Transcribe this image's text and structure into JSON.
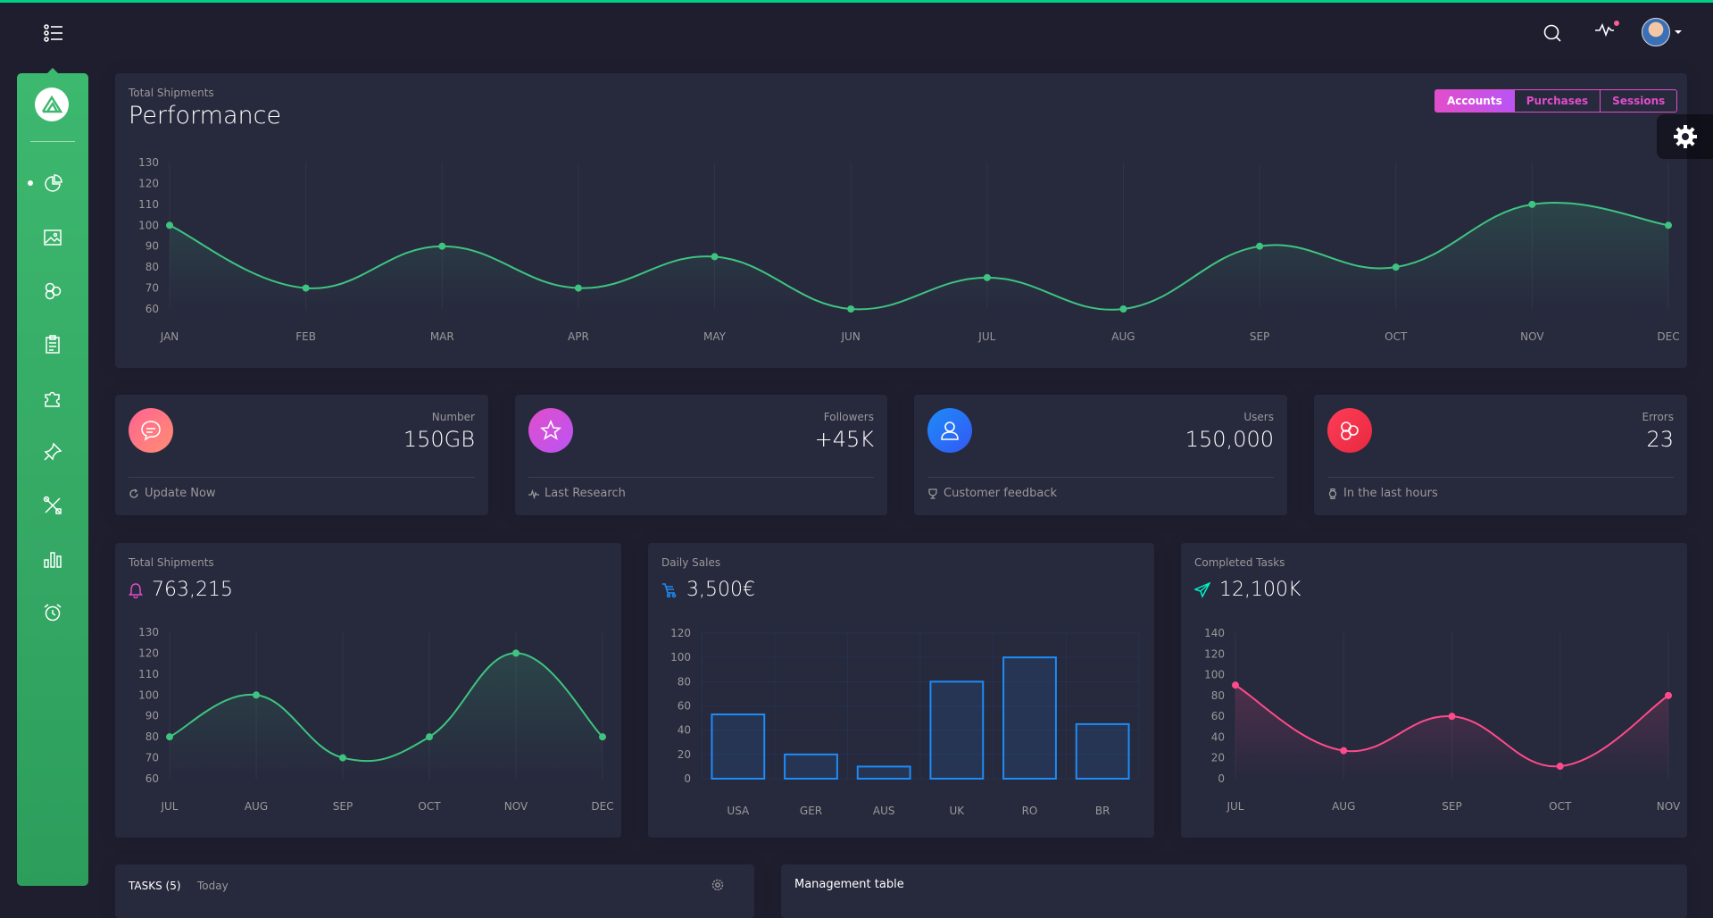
{
  "colors": {
    "background": "#1e1e2f",
    "card": "#27293d",
    "green": "#00d084",
    "line_green": "#3ec480",
    "accent_pink": "#e14eca",
    "blue": "#1d8cf8",
    "pink": "#ff4b8b",
    "muted": "#9a9a9a"
  },
  "navbar": {
    "menu_icon": "menu-list-icon",
    "search_icon": "search-icon",
    "activity_icon": "activity-icon",
    "avatar_icon": "avatar"
  },
  "sidebar": {
    "logo_icon": "logo-triangle-icon",
    "items": [
      {
        "icon": "pie-chart-icon",
        "active": true
      },
      {
        "icon": "image-icon",
        "active": false
      },
      {
        "icon": "atom-icon",
        "active": false
      },
      {
        "icon": "clipboard-icon",
        "active": false
      },
      {
        "icon": "puzzle-icon",
        "active": false
      },
      {
        "icon": "pin-icon",
        "active": false
      },
      {
        "icon": "tools-icon",
        "active": false
      },
      {
        "icon": "bar-chart-icon",
        "active": false
      },
      {
        "icon": "alarm-icon",
        "active": false
      }
    ]
  },
  "performance": {
    "category": "Total Shipments",
    "title": "Performance",
    "tabs": [
      "Accounts",
      "Purchases",
      "Sessions"
    ],
    "active_tab": 0
  },
  "stats": [
    {
      "category": "Number",
      "value": "150GB",
      "footer": "Update Now",
      "icon": "chat-icon",
      "footer_icon": "refresh-icon",
      "color": "#fd5d93"
    },
    {
      "category": "Followers",
      "value": "+45K",
      "footer": "Last Research",
      "icon": "star-icon",
      "footer_icon": "pulse-icon",
      "color": "#e14eca"
    },
    {
      "category": "Users",
      "value": "150,000",
      "footer": "Customer feedback",
      "icon": "user-icon",
      "footer_icon": "trophy-icon",
      "color": "#1d8cf8"
    },
    {
      "category": "Errors",
      "value": "23",
      "footer": "In the last hours",
      "icon": "molecule-icon",
      "footer_icon": "watch-icon",
      "color": "#fd3d57"
    }
  ],
  "small_cards": [
    {
      "category": "Total Shipments",
      "value": "763,215",
      "icon": "bell-icon",
      "icon_color": "#e14eca"
    },
    {
      "category": "Daily Sales",
      "value": "3,500€",
      "icon": "delivery-icon",
      "icon_color": "#1d8cf8"
    },
    {
      "category": "Completed Tasks",
      "value": "12,100K",
      "icon": "send-icon",
      "icon_color": "#00f2c3"
    }
  ],
  "tasks": {
    "title": "TASKS (5)",
    "subtitle": "Today",
    "settings_icon": "settings-icon"
  },
  "management": {
    "title": "Management table"
  },
  "chart_data": [
    {
      "type": "line",
      "title": "Performance",
      "categories": [
        "JAN",
        "FEB",
        "MAR",
        "APR",
        "MAY",
        "JUN",
        "JUL",
        "AUG",
        "SEP",
        "OCT",
        "NOV",
        "DEC"
      ],
      "values": [
        100,
        70,
        90,
        70,
        85,
        60,
        75,
        60,
        90,
        80,
        110,
        100
      ],
      "yticks": [
        130,
        120,
        110,
        100,
        90,
        80,
        70,
        60
      ],
      "ylim": [
        60,
        130
      ],
      "color": "#3ec480"
    },
    {
      "type": "line",
      "title": "Total Shipments",
      "categories": [
        "JUL",
        "AUG",
        "SEP",
        "OCT",
        "NOV",
        "DEC"
      ],
      "values": [
        80,
        100,
        70,
        80,
        120,
        80
      ],
      "yticks": [
        130,
        120,
        110,
        100,
        90,
        80,
        70,
        60
      ],
      "ylim": [
        60,
        130
      ],
      "color": "#3ec480"
    },
    {
      "type": "bar",
      "title": "Daily Sales",
      "categories": [
        "USA",
        "GER",
        "AUS",
        "UK",
        "RO",
        "BR"
      ],
      "values": [
        53,
        20,
        10,
        80,
        100,
        45
      ],
      "yticks": [
        120,
        100,
        80,
        60,
        40,
        20,
        0
      ],
      "ylim": [
        0,
        120
      ],
      "color": "#1d8cf8"
    },
    {
      "type": "line",
      "title": "Completed Tasks",
      "categories": [
        "JUL",
        "AUG",
        "SEP",
        "OCT",
        "NOV"
      ],
      "values": [
        90,
        27,
        60,
        12,
        80
      ],
      "yticks": [
        140,
        120,
        100,
        80,
        60,
        40,
        20,
        0
      ],
      "ylim": [
        0,
        140
      ],
      "color": "#ff4b8b"
    }
  ]
}
